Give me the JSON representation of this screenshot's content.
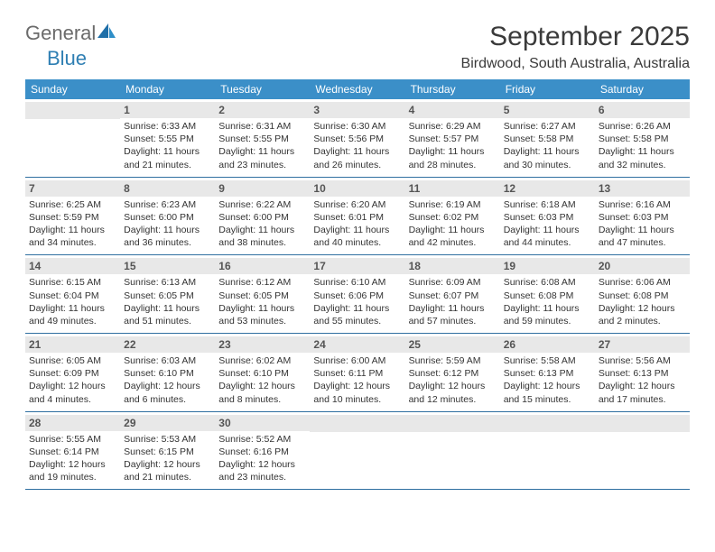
{
  "brand": {
    "part1": "General",
    "part2": "Blue"
  },
  "title": "September 2025",
  "location": "Birdwood, South Australia, Australia",
  "header_bg": "#3b8fc8",
  "dow_labels": [
    "Sunday",
    "Monday",
    "Tuesday",
    "Wednesday",
    "Thursday",
    "Friday",
    "Saturday"
  ],
  "weeks": [
    [
      null,
      {
        "n": "1",
        "sr": "Sunrise: 6:33 AM",
        "ss": "Sunset: 5:55 PM",
        "d1": "Daylight: 11 hours",
        "d2": "and 21 minutes."
      },
      {
        "n": "2",
        "sr": "Sunrise: 6:31 AM",
        "ss": "Sunset: 5:55 PM",
        "d1": "Daylight: 11 hours",
        "d2": "and 23 minutes."
      },
      {
        "n": "3",
        "sr": "Sunrise: 6:30 AM",
        "ss": "Sunset: 5:56 PM",
        "d1": "Daylight: 11 hours",
        "d2": "and 26 minutes."
      },
      {
        "n": "4",
        "sr": "Sunrise: 6:29 AM",
        "ss": "Sunset: 5:57 PM",
        "d1": "Daylight: 11 hours",
        "d2": "and 28 minutes."
      },
      {
        "n": "5",
        "sr": "Sunrise: 6:27 AM",
        "ss": "Sunset: 5:58 PM",
        "d1": "Daylight: 11 hours",
        "d2": "and 30 minutes."
      },
      {
        "n": "6",
        "sr": "Sunrise: 6:26 AM",
        "ss": "Sunset: 5:58 PM",
        "d1": "Daylight: 11 hours",
        "d2": "and 32 minutes."
      }
    ],
    [
      {
        "n": "7",
        "sr": "Sunrise: 6:25 AM",
        "ss": "Sunset: 5:59 PM",
        "d1": "Daylight: 11 hours",
        "d2": "and 34 minutes."
      },
      {
        "n": "8",
        "sr": "Sunrise: 6:23 AM",
        "ss": "Sunset: 6:00 PM",
        "d1": "Daylight: 11 hours",
        "d2": "and 36 minutes."
      },
      {
        "n": "9",
        "sr": "Sunrise: 6:22 AM",
        "ss": "Sunset: 6:00 PM",
        "d1": "Daylight: 11 hours",
        "d2": "and 38 minutes."
      },
      {
        "n": "10",
        "sr": "Sunrise: 6:20 AM",
        "ss": "Sunset: 6:01 PM",
        "d1": "Daylight: 11 hours",
        "d2": "and 40 minutes."
      },
      {
        "n": "11",
        "sr": "Sunrise: 6:19 AM",
        "ss": "Sunset: 6:02 PM",
        "d1": "Daylight: 11 hours",
        "d2": "and 42 minutes."
      },
      {
        "n": "12",
        "sr": "Sunrise: 6:18 AM",
        "ss": "Sunset: 6:03 PM",
        "d1": "Daylight: 11 hours",
        "d2": "and 44 minutes."
      },
      {
        "n": "13",
        "sr": "Sunrise: 6:16 AM",
        "ss": "Sunset: 6:03 PM",
        "d1": "Daylight: 11 hours",
        "d2": "and 47 minutes."
      }
    ],
    [
      {
        "n": "14",
        "sr": "Sunrise: 6:15 AM",
        "ss": "Sunset: 6:04 PM",
        "d1": "Daylight: 11 hours",
        "d2": "and 49 minutes."
      },
      {
        "n": "15",
        "sr": "Sunrise: 6:13 AM",
        "ss": "Sunset: 6:05 PM",
        "d1": "Daylight: 11 hours",
        "d2": "and 51 minutes."
      },
      {
        "n": "16",
        "sr": "Sunrise: 6:12 AM",
        "ss": "Sunset: 6:05 PM",
        "d1": "Daylight: 11 hours",
        "d2": "and 53 minutes."
      },
      {
        "n": "17",
        "sr": "Sunrise: 6:10 AM",
        "ss": "Sunset: 6:06 PM",
        "d1": "Daylight: 11 hours",
        "d2": "and 55 minutes."
      },
      {
        "n": "18",
        "sr": "Sunrise: 6:09 AM",
        "ss": "Sunset: 6:07 PM",
        "d1": "Daylight: 11 hours",
        "d2": "and 57 minutes."
      },
      {
        "n": "19",
        "sr": "Sunrise: 6:08 AM",
        "ss": "Sunset: 6:08 PM",
        "d1": "Daylight: 11 hours",
        "d2": "and 59 minutes."
      },
      {
        "n": "20",
        "sr": "Sunrise: 6:06 AM",
        "ss": "Sunset: 6:08 PM",
        "d1": "Daylight: 12 hours",
        "d2": "and 2 minutes."
      }
    ],
    [
      {
        "n": "21",
        "sr": "Sunrise: 6:05 AM",
        "ss": "Sunset: 6:09 PM",
        "d1": "Daylight: 12 hours",
        "d2": "and 4 minutes."
      },
      {
        "n": "22",
        "sr": "Sunrise: 6:03 AM",
        "ss": "Sunset: 6:10 PM",
        "d1": "Daylight: 12 hours",
        "d2": "and 6 minutes."
      },
      {
        "n": "23",
        "sr": "Sunrise: 6:02 AM",
        "ss": "Sunset: 6:10 PM",
        "d1": "Daylight: 12 hours",
        "d2": "and 8 minutes."
      },
      {
        "n": "24",
        "sr": "Sunrise: 6:00 AM",
        "ss": "Sunset: 6:11 PM",
        "d1": "Daylight: 12 hours",
        "d2": "and 10 minutes."
      },
      {
        "n": "25",
        "sr": "Sunrise: 5:59 AM",
        "ss": "Sunset: 6:12 PM",
        "d1": "Daylight: 12 hours",
        "d2": "and 12 minutes."
      },
      {
        "n": "26",
        "sr": "Sunrise: 5:58 AM",
        "ss": "Sunset: 6:13 PM",
        "d1": "Daylight: 12 hours",
        "d2": "and 15 minutes."
      },
      {
        "n": "27",
        "sr": "Sunrise: 5:56 AM",
        "ss": "Sunset: 6:13 PM",
        "d1": "Daylight: 12 hours",
        "d2": "and 17 minutes."
      }
    ],
    [
      {
        "n": "28",
        "sr": "Sunrise: 5:55 AM",
        "ss": "Sunset: 6:14 PM",
        "d1": "Daylight: 12 hours",
        "d2": "and 19 minutes."
      },
      {
        "n": "29",
        "sr": "Sunrise: 5:53 AM",
        "ss": "Sunset: 6:15 PM",
        "d1": "Daylight: 12 hours",
        "d2": "and 21 minutes."
      },
      {
        "n": "30",
        "sr": "Sunrise: 5:52 AM",
        "ss": "Sunset: 6:16 PM",
        "d1": "Daylight: 12 hours",
        "d2": "and 23 minutes."
      },
      null,
      null,
      null,
      null
    ]
  ]
}
